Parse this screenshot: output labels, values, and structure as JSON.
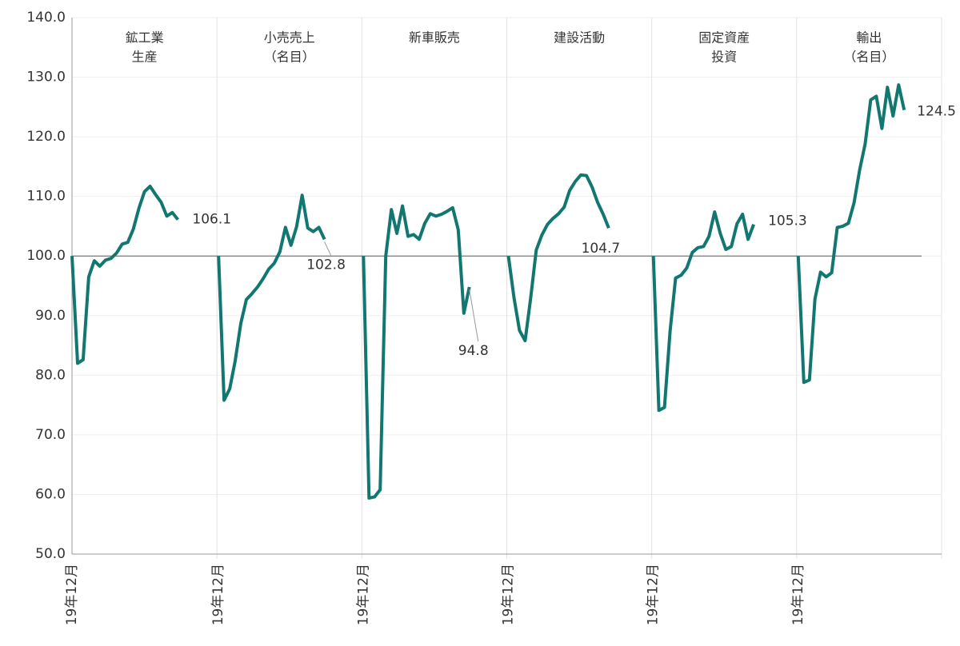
{
  "chart_data": {
    "type": "line",
    "categories": [
      "19年12月",
      null,
      null,
      null,
      null,
      null,
      null,
      null,
      null,
      null,
      null,
      null,
      null,
      null,
      null,
      null,
      null,
      null,
      null,
      null,
      null,
      null,
      null,
      null,
      null,
      null
    ],
    "series": [
      {
        "name": [
          "鉱工業",
          "生産"
        ],
        "color": "#127770",
        "values": [
          100,
          82,
          82.6,
          96.5,
          99.2,
          98.3,
          99.3,
          99.6,
          100.5,
          102,
          102.3,
          104.5,
          108,
          110.8,
          111.7,
          110.3,
          109,
          106.7,
          107.3,
          106.1,
          null,
          null,
          null,
          null,
          null,
          null
        ]
      },
      {
        "name": [
          "小売売上",
          "（名目）"
        ],
        "color": "#127770",
        "values": [
          100,
          75.8,
          77.7,
          82.5,
          88.7,
          92.7,
          93.7,
          94.8,
          96.2,
          97.8,
          98.8,
          100.7,
          104.8,
          101.8,
          104.9,
          110.2,
          104.7,
          104.1,
          104.8,
          102.8,
          null,
          null,
          null,
          null,
          null,
          null
        ]
      },
      {
        "name": [
          "新車販売"
        ],
        "color": "#127770",
        "values": [
          100,
          59.4,
          59.6,
          60.8,
          100,
          107.8,
          103.8,
          108.4,
          103.3,
          103.6,
          102.8,
          105.5,
          107.1,
          106.7,
          107,
          107.5,
          108.1,
          104.4,
          90.4,
          94.8,
          null,
          null,
          null,
          null,
          null,
          null
        ]
      },
      {
        "name": [
          "建設活動"
        ],
        "color": "#127770",
        "values": [
          100,
          93,
          87.5,
          85.8,
          93,
          101,
          103.5,
          105.3,
          106.3,
          107.1,
          108.2,
          111,
          112.5,
          113.6,
          113.5,
          111.6,
          109,
          107,
          104.7,
          null,
          null,
          null,
          null,
          null,
          null,
          null
        ]
      },
      {
        "name": [
          "固定資産",
          "投資"
        ],
        "color": "#127770",
        "values": [
          100,
          74.1,
          74.6,
          87.4,
          96.3,
          96.8,
          98,
          100.6,
          101.4,
          101.6,
          103.3,
          107.4,
          103.8,
          101.1,
          101.6,
          105.4,
          107,
          102.8,
          105.3,
          null,
          null,
          null,
          null,
          null,
          null,
          null
        ]
      },
      {
        "name": [
          "輸出",
          "（名目）"
        ],
        "color": "#127770",
        "values": [
          100,
          78.8,
          79.2,
          92.8,
          97.3,
          96.5,
          97.2,
          104.8,
          105,
          105.5,
          108.9,
          114.4,
          118.8,
          126.2,
          126.8,
          121.4,
          128.3,
          123.5,
          128.7,
          124.5,
          null,
          null,
          null,
          null,
          null,
          null
        ]
      }
    ],
    "ylim": [
      50,
      140
    ],
    "yticks": [
      {
        "value": 50,
        "label": "50.0"
      },
      {
        "value": 60,
        "label": "60.0"
      },
      {
        "value": 70,
        "label": "70.0"
      },
      {
        "value": 80,
        "label": "80.0"
      },
      {
        "value": 90,
        "label": "90.0"
      },
      {
        "value": 100,
        "label": "100.0"
      },
      {
        "value": 110,
        "label": "110.0"
      },
      {
        "value": 120,
        "label": "120.0"
      },
      {
        "value": 130,
        "label": "130.0"
      },
      {
        "value": 140,
        "label": "140.0"
      }
    ],
    "baseline": 100,
    "grid": true
  }
}
